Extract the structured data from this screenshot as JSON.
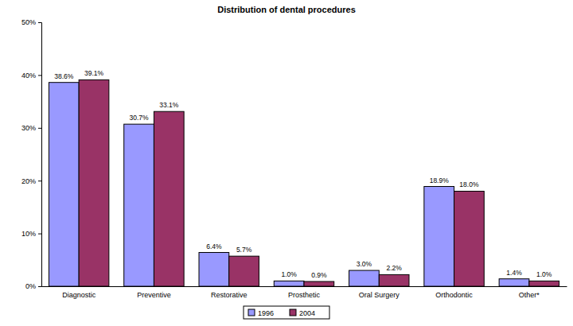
{
  "chart_data": {
    "type": "bar",
    "title": "Distribution of dental procedures",
    "categories": [
      "Diagnostic",
      "Preventive",
      "Restorative",
      "Prosthetic",
      "Oral Surgery",
      "Orthodontic",
      "Other*"
    ],
    "series": [
      {
        "name": "1996",
        "color": "#9999ff",
        "values": [
          38.6,
          30.7,
          6.4,
          1.0,
          3.0,
          18.9,
          1.4
        ],
        "value_labels": [
          "38.6%",
          "30.7%",
          "6.4%",
          "1.0%",
          "3.0%",
          "18.9%",
          "1.4%"
        ]
      },
      {
        "name": "2004",
        "color": "#993366",
        "values": [
          39.1,
          33.1,
          5.7,
          0.9,
          2.2,
          18.0,
          1.0
        ],
        "value_labels": [
          "39.1%",
          "33.1%",
          "5.7%",
          "0.9%",
          "2.2%",
          "18.0%",
          "1.0%"
        ]
      }
    ],
    "ylim": [
      0,
      50
    ],
    "yticks": [
      {
        "value": 0,
        "label": "0%"
      },
      {
        "value": 10,
        "label": "10%"
      },
      {
        "value": 20,
        "label": "20%"
      },
      {
        "value": 30,
        "label": "30%"
      },
      {
        "value": 40,
        "label": "40%"
      },
      {
        "value": 50,
        "label": "50%"
      }
    ],
    "grid": false,
    "legend": "bottom",
    "data_labels": true
  }
}
